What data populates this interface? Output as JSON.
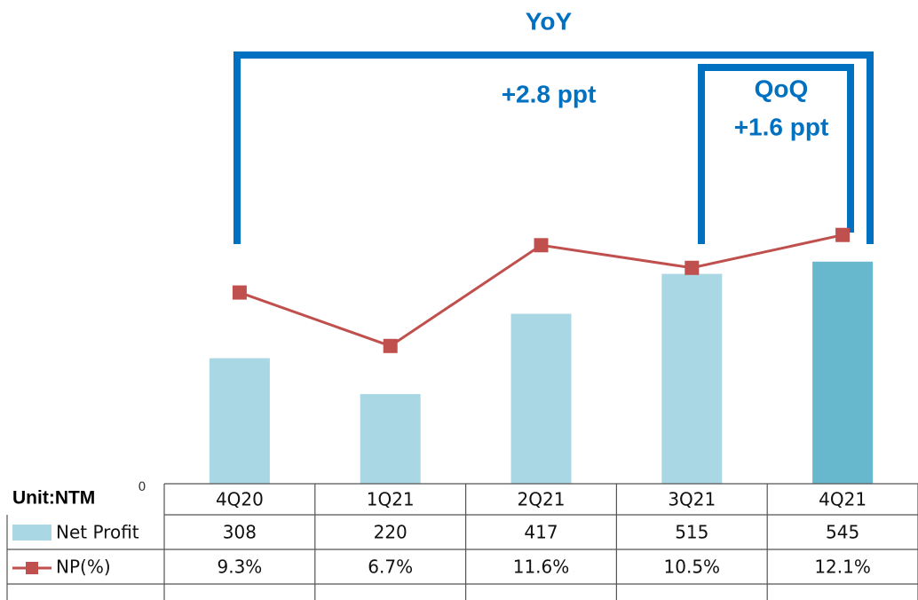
{
  "chart_data": {
    "type": "bar_line_table",
    "unit": "Unit:NTM",
    "categories": [
      "4Q20",
      "1Q21",
      "2Q21",
      "3Q21",
      "4Q21"
    ],
    "series": [
      {
        "name": "Net Profit",
        "color": "#a9d8e4",
        "colors": [
          "#a9d8e4",
          "#a9d8e4",
          "#a9d8e4",
          "#a9d8e4",
          "#68b8cd"
        ],
        "values": [
          308,
          220,
          417,
          515,
          545
        ]
      },
      {
        "name": "NP(%)",
        "color": "#c0504d",
        "axis": "y2",
        "values": [
          9.3,
          6.7,
          11.6,
          10.5,
          12.1
        ],
        "value_labels": [
          "9.3%",
          "6.7%",
          "11.6%",
          "10.5%",
          "12.1%"
        ]
      }
    ],
    "ylim": [
      0,
      1100
    ],
    "yticks": [
      0
    ],
    "y2lim": [
      0,
      21.8
    ],
    "annotations": {
      "yoy": "YoY",
      "yoy_change": "+2.8 ppt",
      "qoq": "QoQ",
      "qoq_change": "+1.6 ppt"
    }
  }
}
